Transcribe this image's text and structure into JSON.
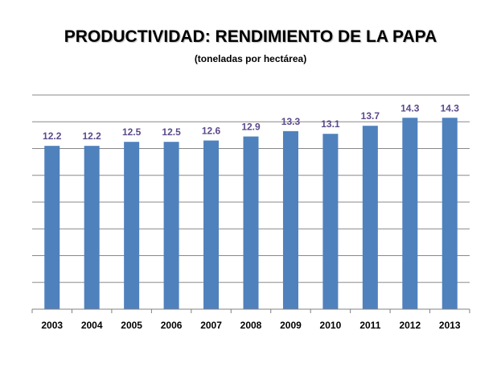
{
  "chart_data": {
    "type": "bar",
    "title": "PRODUCTIVIDAD: RENDIMIENTO DE LA PAPA",
    "subtitle": "(toneladas por hectárea)",
    "xlabel": "",
    "ylabel": "",
    "categories": [
      "2003",
      "2004",
      "2005",
      "2006",
      "2007",
      "2008",
      "2009",
      "2010",
      "2011",
      "2012",
      "2013"
    ],
    "values": [
      12.2,
      12.2,
      12.5,
      12.5,
      12.6,
      12.9,
      13.3,
      13.1,
      13.7,
      14.3,
      14.3
    ],
    "data_labels": [
      "12.2",
      "12.2",
      "12.5",
      "12.5",
      "12.6",
      "12.9",
      "13.3",
      "13.1",
      "13.7",
      "14.3",
      "14.3"
    ],
    "ylim": [
      0,
      16
    ],
    "y_axis_labels_shown": false,
    "grid": true,
    "legend": "none",
    "colors": {
      "bar": "#4f81bd",
      "data_label": "#5a4a8a",
      "grid": "#888888"
    }
  }
}
